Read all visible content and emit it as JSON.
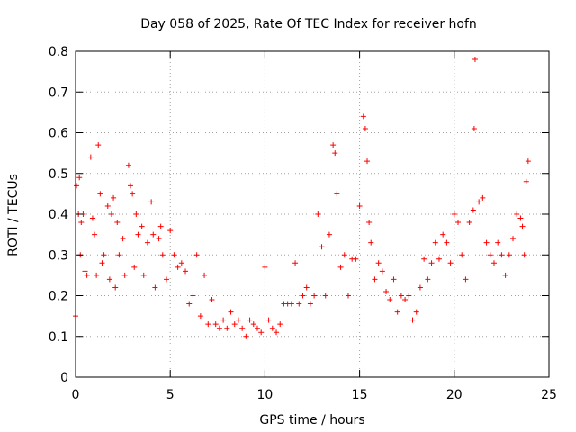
{
  "chart_data": {
    "type": "scatter",
    "title": "Day 058 of 2025, Rate Of TEC Index for receiver hofn",
    "xlabel": "GPS time / hours",
    "ylabel": "ROTI / TECUs",
    "xlim": [
      0,
      25
    ],
    "ylim": [
      0,
      0.8
    ],
    "x_ticks": [
      0,
      5,
      10,
      15,
      20,
      25
    ],
    "x_tick_labels": [
      "0",
      "5",
      "10",
      "15",
      "20",
      "25"
    ],
    "y_ticks": [
      0,
      0.1,
      0.2,
      0.3,
      0.4,
      0.5,
      0.6,
      0.7,
      0.8
    ],
    "y_tick_labels": [
      "0",
      "0.1",
      "0.2",
      "0.3",
      "0.4",
      "0.5",
      "0.6",
      "0.7",
      "0.8"
    ],
    "grid": true,
    "marker": "+",
    "marker_color": "#ff0000",
    "background_color": "#ffffff",
    "grid_color": "#a0a0a0",
    "series": [
      {
        "name": "ROTI",
        "color": "#ff0000",
        "x": [
          0.0,
          0.05,
          0.15,
          0.2,
          0.25,
          0.3,
          0.4,
          0.5,
          0.6,
          0.8,
          0.9,
          1.0,
          1.1,
          1.2,
          1.3,
          1.4,
          1.5,
          1.7,
          1.8,
          1.9,
          2.0,
          2.1,
          2.2,
          2.3,
          2.5,
          2.6,
          2.8,
          2.9,
          3.0,
          3.1,
          3.2,
          3.3,
          3.5,
          3.6,
          3.8,
          4.0,
          4.1,
          4.2,
          4.4,
          4.5,
          4.6,
          4.8,
          5.0,
          5.2,
          5.4,
          5.6,
          5.8,
          6.0,
          6.2,
          6.4,
          6.6,
          6.8,
          7.0,
          7.2,
          7.4,
          7.6,
          7.8,
          8.0,
          8.2,
          8.4,
          8.6,
          8.8,
          9.0,
          9.2,
          9.4,
          9.6,
          9.8,
          10.0,
          10.2,
          10.4,
          10.6,
          10.8,
          11.0,
          11.2,
          11.4,
          11.6,
          11.8,
          12.0,
          12.2,
          12.4,
          12.6,
          12.8,
          13.0,
          13.2,
          13.4,
          13.6,
          13.7,
          13.8,
          14.0,
          14.2,
          14.4,
          14.6,
          14.8,
          15.0,
          15.2,
          15.3,
          15.4,
          15.5,
          15.6,
          15.8,
          16.0,
          16.2,
          16.4,
          16.6,
          16.8,
          17.0,
          17.2,
          17.4,
          17.6,
          17.8,
          18.0,
          18.2,
          18.4,
          18.6,
          18.8,
          19.0,
          19.2,
          19.4,
          19.6,
          19.8,
          20.0,
          20.2,
          20.4,
          20.6,
          20.8,
          21.0,
          21.05,
          21.1,
          21.3,
          21.5,
          21.7,
          21.9,
          22.1,
          22.3,
          22.5,
          22.7,
          22.9,
          23.1,
          23.3,
          23.5,
          23.6,
          23.7,
          23.8,
          23.9
        ],
        "y": [
          0.15,
          0.47,
          0.4,
          0.49,
          0.3,
          0.38,
          0.4,
          0.26,
          0.25,
          0.54,
          0.39,
          0.35,
          0.25,
          0.57,
          0.45,
          0.28,
          0.3,
          0.42,
          0.24,
          0.4,
          0.44,
          0.22,
          0.38,
          0.3,
          0.34,
          0.25,
          0.52,
          0.47,
          0.45,
          0.27,
          0.4,
          0.35,
          0.37,
          0.25,
          0.33,
          0.43,
          0.35,
          0.22,
          0.34,
          0.37,
          0.3,
          0.24,
          0.36,
          0.3,
          0.27,
          0.28,
          0.26,
          0.18,
          0.2,
          0.3,
          0.15,
          0.25,
          0.13,
          0.19,
          0.13,
          0.12,
          0.14,
          0.12,
          0.16,
          0.13,
          0.14,
          0.12,
          0.1,
          0.14,
          0.13,
          0.12,
          0.11,
          0.27,
          0.14,
          0.12,
          0.11,
          0.13,
          0.18,
          0.18,
          0.18,
          0.28,
          0.18,
          0.2,
          0.22,
          0.18,
          0.2,
          0.4,
          0.32,
          0.2,
          0.35,
          0.57,
          0.55,
          0.45,
          0.27,
          0.3,
          0.2,
          0.29,
          0.29,
          0.42,
          0.64,
          0.61,
          0.53,
          0.38,
          0.33,
          0.24,
          0.28,
          0.26,
          0.21,
          0.19,
          0.24,
          0.16,
          0.2,
          0.19,
          0.2,
          0.14,
          0.16,
          0.22,
          0.29,
          0.24,
          0.28,
          0.33,
          0.29,
          0.35,
          0.33,
          0.28,
          0.4,
          0.38,
          0.3,
          0.24,
          0.38,
          0.41,
          0.61,
          0.78,
          0.43,
          0.44,
          0.33,
          0.3,
          0.28,
          0.33,
          0.3,
          0.25,
          0.3,
          0.34,
          0.4,
          0.39,
          0.37,
          0.3,
          0.48,
          0.53
        ]
      }
    ]
  }
}
